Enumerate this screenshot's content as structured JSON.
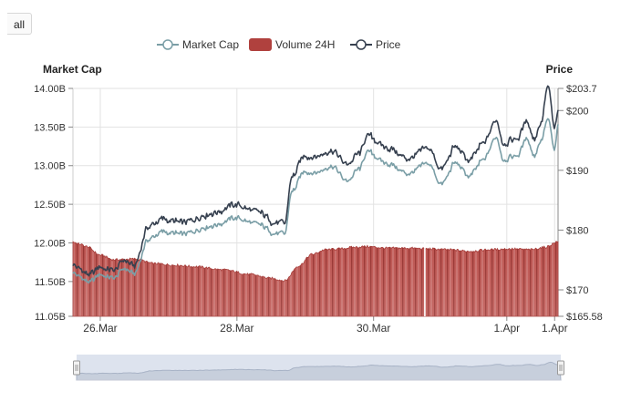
{
  "range_button": {
    "label": "all"
  },
  "legend": {
    "items": [
      {
        "label": "Market Cap",
        "type": "line",
        "color": "#7a9ea6"
      },
      {
        "label": "Volume 24H",
        "type": "bar",
        "color": "#b0413e"
      },
      {
        "label": "Price",
        "type": "line",
        "color": "#36404f"
      }
    ]
  },
  "chart_data": {
    "type": "line",
    "title": "",
    "x_ticks": [
      "26.Mar",
      "28.Mar",
      "30.Mar",
      "1.Apr",
      "1.Apr"
    ],
    "y_left": {
      "title": "Market Cap",
      "tick_labels": [
        "14.00B",
        "13.50B",
        "13.00B",
        "12.50B",
        "12.00B",
        "11.50B",
        "11.05B"
      ],
      "tick_values": [
        14.0,
        13.5,
        13.0,
        12.5,
        12.0,
        11.5,
        11.05
      ],
      "range": [
        11.05,
        14.0
      ]
    },
    "y_right": {
      "title": "Price",
      "tick_labels": [
        "$203.7",
        "$200",
        "$190",
        "$180",
        "$170",
        "$165.58"
      ],
      "tick_values": [
        203.7,
        200,
        190,
        180,
        170,
        165.58
      ],
      "range": [
        165.58,
        203.7
      ]
    },
    "x_range_days": [
      0,
      7.1
    ],
    "price_keypoints": {
      "x_days": [
        0.0,
        0.1,
        0.25,
        0.4,
        0.6,
        0.75,
        0.9,
        1.1,
        1.3,
        1.6,
        2.0,
        2.4,
        2.7,
        3.0,
        3.1,
        3.2,
        3.4,
        3.55,
        3.8,
        4.0,
        4.2,
        4.3,
        4.6,
        4.9,
        5.2,
        5.4,
        5.6,
        5.8,
        6.0,
        6.2,
        6.3,
        6.5,
        6.65,
        6.75,
        6.85,
        6.95,
        7.05,
        7.1
      ],
      "values": [
        174.3,
        173.5,
        172.5,
        173.8,
        173.2,
        175.0,
        174.0,
        180.5,
        181.8,
        181.2,
        182.8,
        184.2,
        183.0,
        181.2,
        181.0,
        188.8,
        192.5,
        192.3,
        193.4,
        191.0,
        192.7,
        195.8,
        193.8,
        192.0,
        193.6,
        190.2,
        194.0,
        191.6,
        194.3,
        198.4,
        194.7,
        195.3,
        198.2,
        195.3,
        198.0,
        204.0,
        197.0,
        199.5
      ]
    },
    "market_cap_keypoints": {
      "x_days": [
        0.0,
        0.1,
        0.25,
        0.4,
        0.6,
        0.75,
        0.9,
        1.1,
        1.3,
        1.6,
        2.0,
        2.4,
        2.7,
        3.0,
        3.1,
        3.2,
        3.4,
        3.55,
        3.8,
        4.0,
        4.2,
        4.3,
        4.6,
        4.9,
        5.2,
        5.4,
        5.6,
        5.8,
        6.0,
        6.2,
        6.3,
        6.5,
        6.65,
        6.75,
        6.85,
        6.95,
        7.05,
        7.1
      ],
      "values": [
        11.62,
        11.56,
        11.49,
        11.59,
        11.54,
        11.67,
        11.6,
        12.04,
        12.14,
        12.11,
        12.22,
        12.32,
        12.24,
        12.12,
        12.11,
        12.66,
        12.93,
        12.91,
        13.0,
        12.8,
        12.95,
        13.18,
        13.03,
        12.9,
        13.02,
        12.76,
        13.04,
        12.86,
        13.06,
        13.37,
        13.09,
        13.13,
        13.35,
        13.13,
        13.33,
        13.6,
        13.2,
        13.5
      ]
    },
    "volume_24h_keypoints": {
      "x_days": [
        0.0,
        0.1,
        0.2,
        0.4,
        0.6,
        0.9,
        1.2,
        1.5,
        1.8,
        2.2,
        2.6,
        2.9,
        3.1,
        3.3,
        3.5,
        3.7,
        3.9,
        4.1,
        4.3,
        4.6,
        4.9,
        5.2,
        5.5,
        5.8,
        6.1,
        6.4,
        6.7,
        6.9,
        7.1
      ],
      "values": [
        0.96,
        0.93,
        0.9,
        0.79,
        0.73,
        0.74,
        0.68,
        0.66,
        0.64,
        0.6,
        0.54,
        0.49,
        0.46,
        0.65,
        0.8,
        0.86,
        0.87,
        0.89,
        0.9,
        0.88,
        0.88,
        0.87,
        0.86,
        0.84,
        0.86,
        0.87,
        0.86,
        0.89,
        0.96
      ],
      "unit": "fraction of axis range (unlabeled)"
    }
  }
}
